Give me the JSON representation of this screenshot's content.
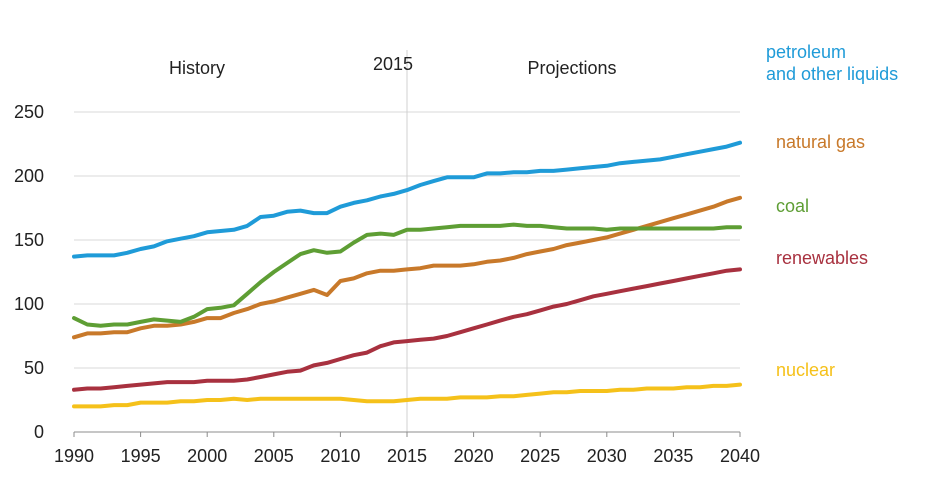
{
  "chart_data": {
    "type": "line",
    "title": "",
    "xlabel": "",
    "ylabel": "",
    "xlim": [
      1990,
      2040
    ],
    "ylim": [
      0,
      250
    ],
    "yticks": [
      0,
      50,
      100,
      150,
      200,
      250
    ],
    "xticks": [
      1990,
      1995,
      2000,
      2005,
      2010,
      2015,
      2020,
      2025,
      2030,
      2035,
      2040
    ],
    "grid": true,
    "legend_placement": "right",
    "divider_year": 2015,
    "annotations": {
      "history": "History",
      "divider": "2015",
      "projections": "Projections"
    },
    "series": [
      {
        "name": "petroleum and other liquids",
        "legend_lines": [
          "petroleum",
          "and other liquids"
        ],
        "color": "#1f9bd8",
        "points": [
          [
            1990,
            137
          ],
          [
            1991,
            138
          ],
          [
            1992,
            138
          ],
          [
            1993,
            138
          ],
          [
            1994,
            140
          ],
          [
            1995,
            143
          ],
          [
            1996,
            145
          ],
          [
            1997,
            149
          ],
          [
            1998,
            151
          ],
          [
            1999,
            153
          ],
          [
            2000,
            156
          ],
          [
            2001,
            157
          ],
          [
            2002,
            158
          ],
          [
            2003,
            161
          ],
          [
            2004,
            168
          ],
          [
            2005,
            169
          ],
          [
            2006,
            172
          ],
          [
            2007,
            173
          ],
          [
            2008,
            171
          ],
          [
            2009,
            171
          ],
          [
            2010,
            176
          ],
          [
            2011,
            179
          ],
          [
            2012,
            181
          ],
          [
            2013,
            184
          ],
          [
            2014,
            186
          ],
          [
            2015,
            189
          ],
          [
            2016,
            193
          ],
          [
            2017,
            196
          ],
          [
            2018,
            199
          ],
          [
            2019,
            199
          ],
          [
            2020,
            199
          ],
          [
            2021,
            202
          ],
          [
            2022,
            202
          ],
          [
            2023,
            203
          ],
          [
            2024,
            203
          ],
          [
            2025,
            204
          ],
          [
            2026,
            204
          ],
          [
            2027,
            205
          ],
          [
            2028,
            206
          ],
          [
            2029,
            207
          ],
          [
            2030,
            208
          ],
          [
            2031,
            210
          ],
          [
            2032,
            211
          ],
          [
            2033,
            212
          ],
          [
            2034,
            213
          ],
          [
            2035,
            215
          ],
          [
            2036,
            217
          ],
          [
            2037,
            219
          ],
          [
            2038,
            221
          ],
          [
            2039,
            223
          ],
          [
            2040,
            226
          ]
        ]
      },
      {
        "name": "natural gas",
        "legend_lines": [
          "natural gas"
        ],
        "color": "#c8792a",
        "points": [
          [
            1990,
            74
          ],
          [
            1991,
            77
          ],
          [
            1992,
            77
          ],
          [
            1993,
            78
          ],
          [
            1994,
            78
          ],
          [
            1995,
            81
          ],
          [
            1996,
            83
          ],
          [
            1997,
            83
          ],
          [
            1998,
            84
          ],
          [
            1999,
            86
          ],
          [
            2000,
            89
          ],
          [
            2001,
            89
          ],
          [
            2002,
            93
          ],
          [
            2003,
            96
          ],
          [
            2004,
            100
          ],
          [
            2005,
            102
          ],
          [
            2006,
            105
          ],
          [
            2007,
            108
          ],
          [
            2008,
            111
          ],
          [
            2009,
            107
          ],
          [
            2010,
            118
          ],
          [
            2011,
            120
          ],
          [
            2012,
            124
          ],
          [
            2013,
            126
          ],
          [
            2014,
            126
          ],
          [
            2015,
            127
          ],
          [
            2016,
            128
          ],
          [
            2017,
            130
          ],
          [
            2018,
            130
          ],
          [
            2019,
            130
          ],
          [
            2020,
            131
          ],
          [
            2021,
            133
          ],
          [
            2022,
            134
          ],
          [
            2023,
            136
          ],
          [
            2024,
            139
          ],
          [
            2025,
            141
          ],
          [
            2026,
            143
          ],
          [
            2027,
            146
          ],
          [
            2028,
            148
          ],
          [
            2029,
            150
          ],
          [
            2030,
            152
          ],
          [
            2031,
            155
          ],
          [
            2032,
            158
          ],
          [
            2033,
            161
          ],
          [
            2034,
            164
          ],
          [
            2035,
            167
          ],
          [
            2036,
            170
          ],
          [
            2037,
            173
          ],
          [
            2038,
            176
          ],
          [
            2039,
            180
          ],
          [
            2040,
            183
          ]
        ]
      },
      {
        "name": "coal",
        "legend_lines": [
          "coal"
        ],
        "color": "#5e9e34",
        "points": [
          [
            1990,
            89
          ],
          [
            1991,
            84
          ],
          [
            1992,
            83
          ],
          [
            1993,
            84
          ],
          [
            1994,
            84
          ],
          [
            1995,
            86
          ],
          [
            1996,
            88
          ],
          [
            1997,
            87
          ],
          [
            1998,
            86
          ],
          [
            1999,
            90
          ],
          [
            2000,
            96
          ],
          [
            2001,
            97
          ],
          [
            2002,
            99
          ],
          [
            2003,
            108
          ],
          [
            2004,
            117
          ],
          [
            2005,
            125
          ],
          [
            2006,
            132
          ],
          [
            2007,
            139
          ],
          [
            2008,
            142
          ],
          [
            2009,
            140
          ],
          [
            2010,
            141
          ],
          [
            2011,
            148
          ],
          [
            2012,
            154
          ],
          [
            2013,
            155
          ],
          [
            2014,
            154
          ],
          [
            2015,
            158
          ],
          [
            2016,
            158
          ],
          [
            2017,
            159
          ],
          [
            2018,
            160
          ],
          [
            2019,
            161
          ],
          [
            2020,
            161
          ],
          [
            2021,
            161
          ],
          [
            2022,
            161
          ],
          [
            2023,
            162
          ],
          [
            2024,
            161
          ],
          [
            2025,
            161
          ],
          [
            2026,
            160
          ],
          [
            2027,
            159
          ],
          [
            2028,
            159
          ],
          [
            2029,
            159
          ],
          [
            2030,
            158
          ],
          [
            2031,
            159
          ],
          [
            2032,
            159
          ],
          [
            2033,
            159
          ],
          [
            2034,
            159
          ],
          [
            2035,
            159
          ],
          [
            2036,
            159
          ],
          [
            2037,
            159
          ],
          [
            2038,
            159
          ],
          [
            2039,
            160
          ],
          [
            2040,
            160
          ]
        ]
      },
      {
        "name": "renewables",
        "legend_lines": [
          "renewables"
        ],
        "color": "#a8313f",
        "points": [
          [
            1990,
            33
          ],
          [
            1991,
            34
          ],
          [
            1992,
            34
          ],
          [
            1993,
            35
          ],
          [
            1994,
            36
          ],
          [
            1995,
            37
          ],
          [
            1996,
            38
          ],
          [
            1997,
            39
          ],
          [
            1998,
            39
          ],
          [
            1999,
            39
          ],
          [
            2000,
            40
          ],
          [
            2001,
            40
          ],
          [
            2002,
            40
          ],
          [
            2003,
            41
          ],
          [
            2004,
            43
          ],
          [
            2005,
            45
          ],
          [
            2006,
            47
          ],
          [
            2007,
            48
          ],
          [
            2008,
            52
          ],
          [
            2009,
            54
          ],
          [
            2010,
            57
          ],
          [
            2011,
            60
          ],
          [
            2012,
            62
          ],
          [
            2013,
            67
          ],
          [
            2014,
            70
          ],
          [
            2015,
            71
          ],
          [
            2016,
            72
          ],
          [
            2017,
            73
          ],
          [
            2018,
            75
          ],
          [
            2019,
            78
          ],
          [
            2020,
            81
          ],
          [
            2021,
            84
          ],
          [
            2022,
            87
          ],
          [
            2023,
            90
          ],
          [
            2024,
            92
          ],
          [
            2025,
            95
          ],
          [
            2026,
            98
          ],
          [
            2027,
            100
          ],
          [
            2028,
            103
          ],
          [
            2029,
            106
          ],
          [
            2030,
            108
          ],
          [
            2031,
            110
          ],
          [
            2032,
            112
          ],
          [
            2033,
            114
          ],
          [
            2034,
            116
          ],
          [
            2035,
            118
          ],
          [
            2036,
            120
          ],
          [
            2037,
            122
          ],
          [
            2038,
            124
          ],
          [
            2039,
            126
          ],
          [
            2040,
            127
          ]
        ]
      },
      {
        "name": "nuclear",
        "legend_lines": [
          "nuclear"
        ],
        "color": "#f5c11a",
        "points": [
          [
            1990,
            20
          ],
          [
            1991,
            20
          ],
          [
            1992,
            20
          ],
          [
            1993,
            21
          ],
          [
            1994,
            21
          ],
          [
            1995,
            23
          ],
          [
            1996,
            23
          ],
          [
            1997,
            23
          ],
          [
            1998,
            24
          ],
          [
            1999,
            24
          ],
          [
            2000,
            25
          ],
          [
            2001,
            25
          ],
          [
            2002,
            26
          ],
          [
            2003,
            25
          ],
          [
            2004,
            26
          ],
          [
            2005,
            26
          ],
          [
            2006,
            26
          ],
          [
            2007,
            26
          ],
          [
            2008,
            26
          ],
          [
            2009,
            26
          ],
          [
            2010,
            26
          ],
          [
            2011,
            25
          ],
          [
            2012,
            24
          ],
          [
            2013,
            24
          ],
          [
            2014,
            24
          ],
          [
            2015,
            25
          ],
          [
            2016,
            26
          ],
          [
            2017,
            26
          ],
          [
            2018,
            26
          ],
          [
            2019,
            27
          ],
          [
            2020,
            27
          ],
          [
            2021,
            27
          ],
          [
            2022,
            28
          ],
          [
            2023,
            28
          ],
          [
            2024,
            29
          ],
          [
            2025,
            30
          ],
          [
            2026,
            31
          ],
          [
            2027,
            31
          ],
          [
            2028,
            32
          ],
          [
            2029,
            32
          ],
          [
            2030,
            32
          ],
          [
            2031,
            33
          ],
          [
            2032,
            33
          ],
          [
            2033,
            34
          ],
          [
            2034,
            34
          ],
          [
            2035,
            34
          ],
          [
            2036,
            35
          ],
          [
            2037,
            35
          ],
          [
            2038,
            36
          ],
          [
            2039,
            36
          ],
          [
            2040,
            37
          ]
        ]
      }
    ]
  }
}
